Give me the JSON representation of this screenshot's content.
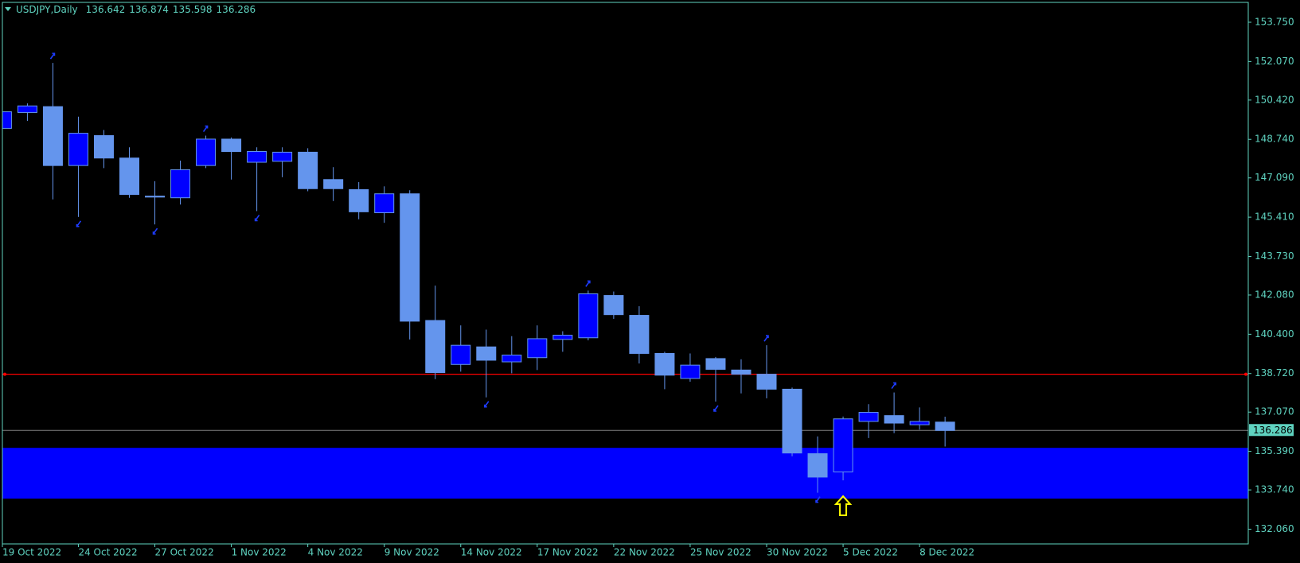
{
  "chart_data": {
    "type": "candlestick",
    "title": "USDJPY,Daily",
    "categories": [
      "19 Oct 2022",
      null,
      null,
      "24 Oct 2022",
      null,
      null,
      "27 Oct 2022",
      null,
      null,
      "1 Nov 2022",
      null,
      null,
      "4 Nov 2022",
      null,
      null,
      "9 Nov 2022",
      null,
      null,
      "14 Nov 2022",
      null,
      null,
      "17 Nov 2022",
      null,
      null,
      "22 Nov 2022",
      null,
      null,
      "25 Nov 2022",
      null,
      null,
      "30 Nov 2022",
      null,
      null,
      "5 Dec 2022",
      null,
      null,
      "8 Dec 2022",
      null
    ],
    "open": [
      149.21,
      149.89,
      150.14,
      147.62,
      148.9,
      147.94,
      146.31,
      146.24,
      147.62,
      148.75,
      147.76,
      147.8,
      148.19,
      147.02,
      146.59,
      145.6,
      146.41,
      140.99,
      139.11,
      139.86,
      139.22,
      139.4,
      140.18,
      140.25,
      142.06,
      141.21,
      139.58,
      138.51,
      139.36,
      138.87,
      138.69,
      138.05,
      135.29,
      134.51,
      136.67,
      136.92,
      136.53,
      136.642
    ],
    "high": [
      150.03,
      150.28,
      152.01,
      149.71,
      149.14,
      148.4,
      146.95,
      147.83,
      148.9,
      148.82,
      148.4,
      148.4,
      148.36,
      147.55,
      146.91,
      146.73,
      146.56,
      142.48,
      140.78,
      140.6,
      140.32,
      140.78,
      140.53,
      142.27,
      142.23,
      141.6,
      139.65,
      139.58,
      139.43,
      139.33,
      139.93,
      138.12,
      136.03,
      136.88,
      137.41,
      137.91,
      137.27,
      136.874
    ],
    "low": [
      149.11,
      149.53,
      146.17,
      145.42,
      147.51,
      146.24,
      145.1,
      145.95,
      147.51,
      147.02,
      145.67,
      147.12,
      146.52,
      146.1,
      145.32,
      145.17,
      140.18,
      138.48,
      138.8,
      137.7,
      138.73,
      138.87,
      139.65,
      140.14,
      141.06,
      139.15,
      138.05,
      138.37,
      137.52,
      137.87,
      137.66,
      135.18,
      133.62,
      134.15,
      135.96,
      136.17,
      136.32,
      135.598
    ],
    "close": [
      149.92,
      150.17,
      147.62,
      149.0,
      147.94,
      146.38,
      146.27,
      147.44,
      148.75,
      148.22,
      148.22,
      148.19,
      146.63,
      146.63,
      145.64,
      146.41,
      140.96,
      138.76,
      139.93,
      139.29,
      139.51,
      140.21,
      140.36,
      142.13,
      141.24,
      139.58,
      138.65,
      139.08,
      138.9,
      138.69,
      138.05,
      135.32,
      134.29,
      136.78,
      137.06,
      136.6,
      136.67,
      136.286
    ],
    "up_color": "#0000ff",
    "down_color": "#6495ed",
    "wick_color": "#6495ed",
    "ylim": [
      131.43,
      154.6
    ],
    "yticks": [
      {
        "value": 153.75,
        "label": "153.750"
      },
      {
        "value": 152.07,
        "label": "152.070"
      },
      {
        "value": 150.42,
        "label": "150.420"
      },
      {
        "value": 148.74,
        "label": "148.740"
      },
      {
        "value": 147.09,
        "label": "147.090"
      },
      {
        "value": 145.41,
        "label": "145.410"
      },
      {
        "value": 143.73,
        "label": "143.730"
      },
      {
        "value": 142.08,
        "label": "142.080"
      },
      {
        "value": 140.4,
        "label": "140.400"
      },
      {
        "value": 138.72,
        "label": "138.720"
      },
      {
        "value": 137.07,
        "label": "137.070"
      },
      {
        "value": 135.39,
        "label": "135.390"
      },
      {
        "value": 133.74,
        "label": "133.740"
      },
      {
        "value": 132.06,
        "label": "132.060"
      }
    ],
    "hline": {
      "value": 138.69,
      "color": "#ff0000"
    },
    "zone": {
      "low": 133.37,
      "high": 135.54,
      "color": "#0000ff"
    },
    "price_line": {
      "color": "#808080"
    },
    "signal": {
      "index": 33,
      "color": "#ffff00"
    },
    "fractals": {
      "up": [
        2,
        8,
        23,
        30,
        35
      ],
      "down": [
        3,
        6,
        10,
        19,
        28,
        32
      ],
      "color": "#1e3cff"
    },
    "axis_color": "#5fd3c0",
    "background": "#000000"
  }
}
